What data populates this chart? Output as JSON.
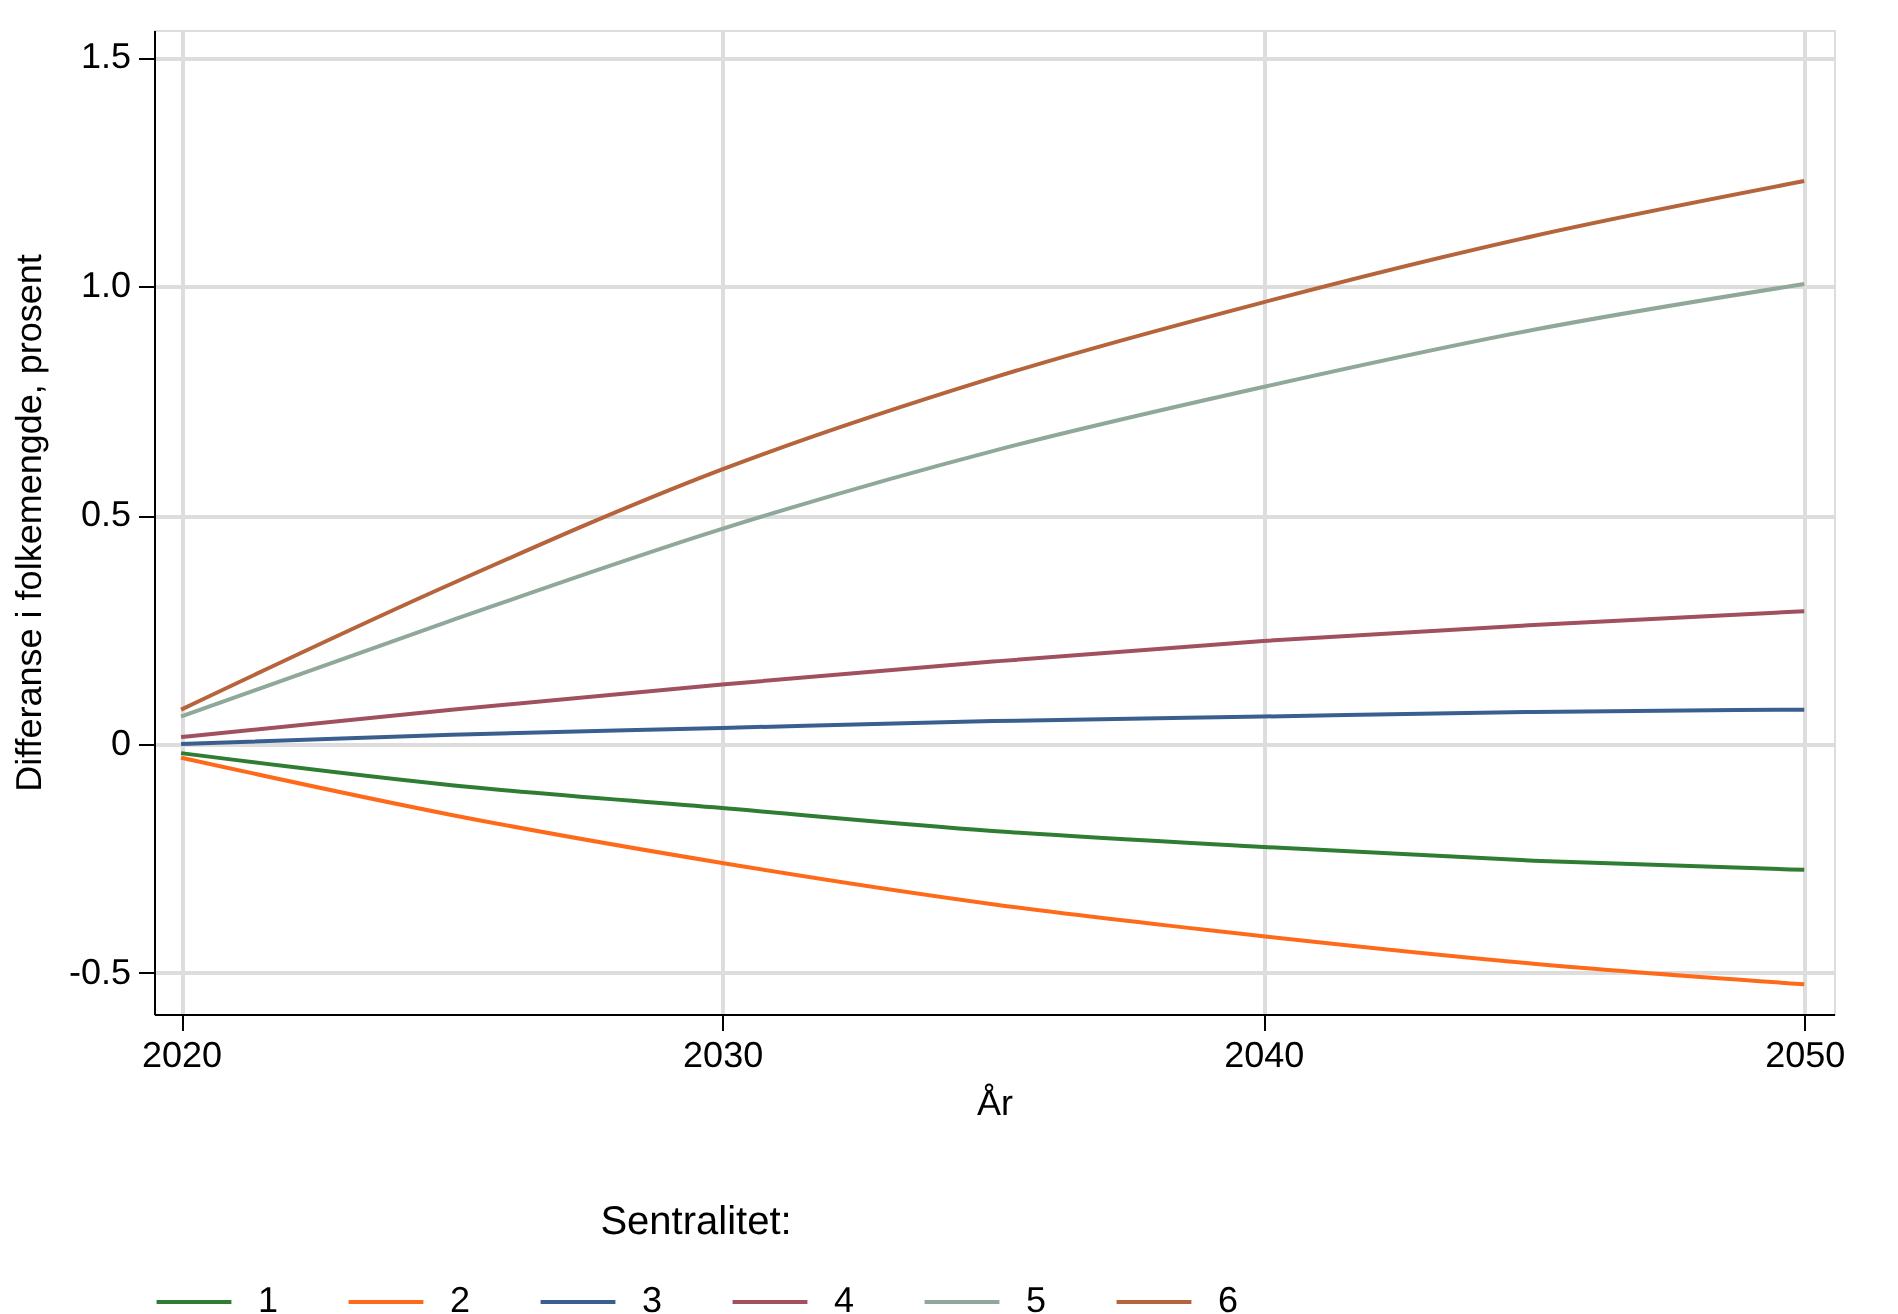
{
  "chart_data": {
    "type": "line",
    "xlabel": "År",
    "ylabel": "Differanse i folkemengde, prosent",
    "legend_title": "Sentralitet:",
    "legend": "bottom",
    "grid": true,
    "marker": "none",
    "line_style": "solid",
    "x": [
      2020,
      2025,
      2030,
      2035,
      2040,
      2045,
      2050
    ],
    "xlim": [
      2019.5,
      2050.55
    ],
    "xticks": [
      2020,
      2030,
      2040,
      2050
    ],
    "ylim": [
      -0.59,
      1.56
    ],
    "yticks": [
      -0.5,
      0,
      0.5,
      {
        "value": 1,
        "label": "1.0"
      },
      1.5
    ],
    "series": [
      {
        "name": "1",
        "color": "#2e7d32",
        "values": [
          -0.02,
          -0.09,
          -0.14,
          -0.19,
          -0.225,
          -0.255,
          -0.275
        ]
      },
      {
        "name": "2",
        "color": "#ff6a1a",
        "values": [
          -0.03,
          -0.155,
          -0.26,
          -0.35,
          -0.42,
          -0.48,
          -0.525
        ]
      },
      {
        "name": "3",
        "color": "#3a5f8f",
        "values": [
          0.0,
          0.02,
          0.035,
          0.05,
          0.06,
          0.07,
          0.075
        ]
      },
      {
        "name": "4",
        "color": "#a0505e",
        "values": [
          0.015,
          0.075,
          0.13,
          0.18,
          0.225,
          0.26,
          0.29
        ]
      },
      {
        "name": "5",
        "color": "#8fa89a",
        "values": [
          0.06,
          0.27,
          0.47,
          0.64,
          0.78,
          0.905,
          1.005
        ]
      },
      {
        "name": "6",
        "color": "#b5643c",
        "values": [
          0.075,
          0.35,
          0.6,
          0.8,
          0.965,
          1.11,
          1.23
        ]
      }
    ]
  }
}
